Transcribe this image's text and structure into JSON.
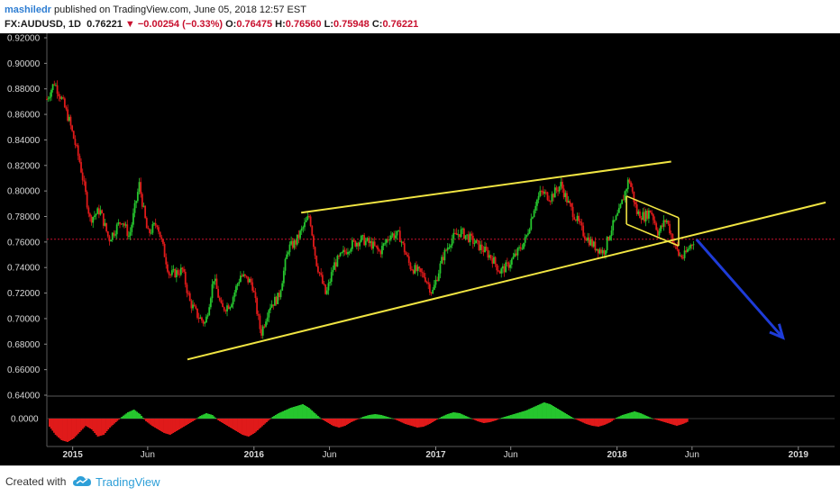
{
  "header": {
    "author": "mashiledr",
    "published_text": "published on TradingView.com, June 05, 2018 12:57 EST",
    "symbol": "FX:AUDUSD, 1D",
    "last": "0.76221",
    "change_arrow": "▼",
    "change": "−0.00254 (−0.33%)",
    "o_label": "O:",
    "o": "0.76475",
    "h_label": "H:",
    "h": "0.76560",
    "l_label": "L:",
    "l": "0.75948",
    "c_label": "C:",
    "c": "0.76221"
  },
  "footer": {
    "created_with": "Created with",
    "brand": "TradingView"
  },
  "colors": {
    "background": "#000000",
    "up": "#26c62e",
    "down": "#e01a1a",
    "trendline": "#f0e442",
    "arrow": "#1e3cd8",
    "current_price": "#c8102e",
    "axis_text": "#d8d8d8"
  },
  "chart_data": [
    {
      "type": "candlestick",
      "symbol": "FX:AUDUSD",
      "interval": "1D",
      "ylim": [
        0.64,
        0.92
      ],
      "yticks": [
        "0.92000",
        "0.90000",
        "0.88000",
        "0.86000",
        "0.84000",
        "0.82000",
        "0.80000",
        "0.78000",
        "0.76000",
        "0.74000",
        "0.72000",
        "0.70000",
        "0.68000",
        "0.66000",
        "0.64000"
      ],
      "xticks": [
        "2015",
        "Jun",
        "2016",
        "Jun",
        "2017",
        "Jun",
        "2018",
        "Jun",
        "2019"
      ],
      "xtick_dates": [
        "2015-01-01",
        "2015-06-01",
        "2016-01-01",
        "2016-06-01",
        "2017-01-01",
        "2017-06-01",
        "2018-01-01",
        "2018-06-01",
        "2019-01-01"
      ],
      "x_range": [
        "2014-11-10",
        "2019-03-15"
      ],
      "current_price": 0.76221,
      "price_path": [
        [
          "2014-11-10",
          0.872
        ],
        [
          "2014-11-25",
          0.885
        ],
        [
          "2014-12-10",
          0.872
        ],
        [
          "2014-12-25",
          0.855
        ],
        [
          "2015-01-15",
          0.823
        ],
        [
          "2015-02-05",
          0.778
        ],
        [
          "2015-02-25",
          0.785
        ],
        [
          "2015-03-15",
          0.762
        ],
        [
          "2015-04-10",
          0.778
        ],
        [
          "2015-04-25",
          0.764
        ],
        [
          "2015-05-15",
          0.805
        ],
        [
          "2015-06-01",
          0.766
        ],
        [
          "2015-06-20",
          0.775
        ],
        [
          "2015-07-15",
          0.734
        ],
        [
          "2015-08-10",
          0.738
        ],
        [
          "2015-08-25",
          0.713
        ],
        [
          "2015-09-10",
          0.702
        ],
        [
          "2015-09-25",
          0.696
        ],
        [
          "2015-10-12",
          0.732
        ],
        [
          "2015-10-28",
          0.707
        ],
        [
          "2015-11-15",
          0.712
        ],
        [
          "2015-12-05",
          0.734
        ],
        [
          "2015-12-28",
          0.728
        ],
        [
          "2016-01-15",
          0.688
        ],
        [
          "2016-02-01",
          0.71
        ],
        [
          "2016-02-20",
          0.717
        ],
        [
          "2016-03-10",
          0.755
        ],
        [
          "2016-03-25",
          0.76
        ],
        [
          "2016-04-10",
          0.772
        ],
        [
          "2016-04-22",
          0.781
        ],
        [
          "2016-05-05",
          0.745
        ],
        [
          "2016-05-25",
          0.718
        ],
        [
          "2016-06-10",
          0.742
        ],
        [
          "2016-07-01",
          0.752
        ],
        [
          "2016-07-15",
          0.758
        ],
        [
          "2016-08-05",
          0.762
        ],
        [
          "2016-08-25",
          0.758
        ],
        [
          "2016-09-10",
          0.752
        ],
        [
          "2016-10-01",
          0.766
        ],
        [
          "2016-10-20",
          0.765
        ],
        [
          "2016-11-10",
          0.741
        ],
        [
          "2016-12-10",
          0.733
        ],
        [
          "2016-12-25",
          0.72
        ],
        [
          "2017-01-15",
          0.748
        ],
        [
          "2017-02-01",
          0.762
        ],
        [
          "2017-02-20",
          0.768
        ],
        [
          "2017-03-10",
          0.763
        ],
        [
          "2017-03-25",
          0.758
        ],
        [
          "2017-04-10",
          0.753
        ],
        [
          "2017-04-25",
          0.747
        ],
        [
          "2017-05-10",
          0.737
        ],
        [
          "2017-05-25",
          0.741
        ],
        [
          "2017-06-15",
          0.752
        ],
        [
          "2017-07-01",
          0.762
        ],
        [
          "2017-07-20",
          0.79
        ],
        [
          "2017-08-01",
          0.799
        ],
        [
          "2017-08-20",
          0.795
        ],
        [
          "2017-09-10",
          0.805
        ],
        [
          "2017-09-25",
          0.79
        ],
        [
          "2017-10-10",
          0.779
        ],
        [
          "2017-10-25",
          0.767
        ],
        [
          "2017-11-15",
          0.757
        ],
        [
          "2017-12-05",
          0.752
        ],
        [
          "2017-12-20",
          0.77
        ],
        [
          "2018-01-05",
          0.783
        ],
        [
          "2018-01-25",
          0.81
        ],
        [
          "2018-02-10",
          0.783
        ],
        [
          "2018-02-25",
          0.78
        ],
        [
          "2018-03-10",
          0.785
        ],
        [
          "2018-03-25",
          0.767
        ],
        [
          "2018-04-10",
          0.778
        ],
        [
          "2018-04-25",
          0.76
        ],
        [
          "2018-05-05",
          0.75
        ],
        [
          "2018-05-15",
          0.748
        ],
        [
          "2018-05-25",
          0.755
        ],
        [
          "2018-06-05",
          0.762
        ]
      ]
    },
    {
      "type": "histogram",
      "name": "oscillator",
      "ytick": "0.0000",
      "values": [
        -9,
        -18,
        -24,
        -26,
        -22,
        -15,
        -8,
        -12,
        -20,
        -18,
        -10,
        -4,
        2,
        7,
        10,
        5,
        -3,
        -8,
        -12,
        -16,
        -18,
        -14,
        -10,
        -6,
        -2,
        3,
        6,
        4,
        -2,
        -6,
        -10,
        -14,
        -18,
        -20,
        -16,
        -10,
        -4,
        2,
        6,
        9,
        12,
        14,
        16,
        12,
        6,
        0,
        -4,
        -8,
        -10,
        -8,
        -4,
        -1,
        2,
        4,
        5,
        4,
        2,
        0,
        -3,
        -6,
        -8,
        -10,
        -9,
        -6,
        -2,
        2,
        5,
        7,
        6,
        3,
        0,
        -3,
        -5,
        -4,
        -2,
        1,
        3,
        5,
        7,
        9,
        12,
        15,
        18,
        16,
        12,
        8,
        4,
        0,
        -3,
        -6,
        -8,
        -9,
        -7,
        -4,
        1,
        4,
        6,
        8,
        6,
        3,
        0,
        -2,
        -4,
        -6,
        -8,
        -6,
        -3
      ]
    }
  ],
  "annotations": {
    "upper_channel": [
      [
        "2016-04-05",
        0.783
      ],
      [
        "2018-04-20",
        0.823
      ]
    ],
    "lower_channel": [
      [
        "2015-08-20",
        0.668
      ],
      [
        "2019-02-25",
        0.791
      ]
    ],
    "wedge_upper": [
      [
        "2018-01-20",
        0.796
      ],
      [
        "2018-05-05",
        0.779
      ]
    ],
    "wedge_lower": [
      [
        "2018-01-20",
        0.774
      ],
      [
        "2018-05-05",
        0.757
      ]
    ],
    "forecast_arrow": [
      [
        "2018-06-10",
        0.762
      ],
      [
        "2018-12-01",
        0.685
      ]
    ]
  }
}
